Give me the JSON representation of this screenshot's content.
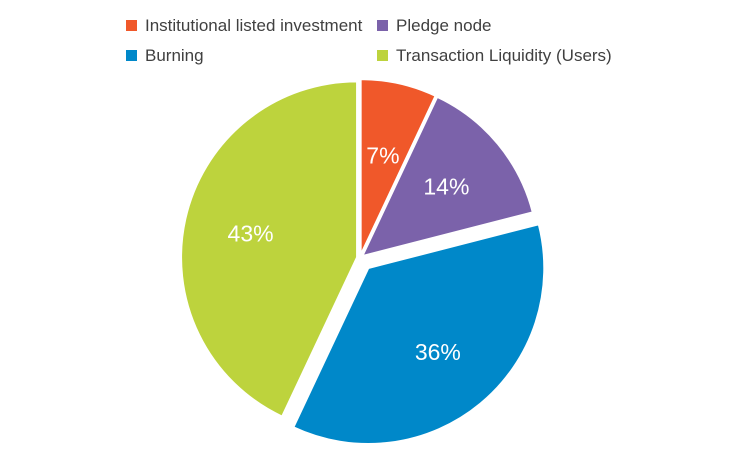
{
  "chart_data": {
    "type": "pie",
    "title": "",
    "legend_position": "top",
    "slices": [
      {
        "label": "Institutional listed investment",
        "value": 7,
        "display": "7%",
        "color": "#f0582a",
        "exploded": false
      },
      {
        "label": "Pledge node",
        "value": 14,
        "display": "14%",
        "color": "#7b62aa",
        "exploded": false
      },
      {
        "label": "Burning",
        "value": 36,
        "display": "36%",
        "color": "#0088c9",
        "exploded": true
      },
      {
        "label": "Transaction Liquidity (Users)",
        "value": 43,
        "display": "43%",
        "color": "#bdd33d",
        "exploded": false
      }
    ]
  }
}
